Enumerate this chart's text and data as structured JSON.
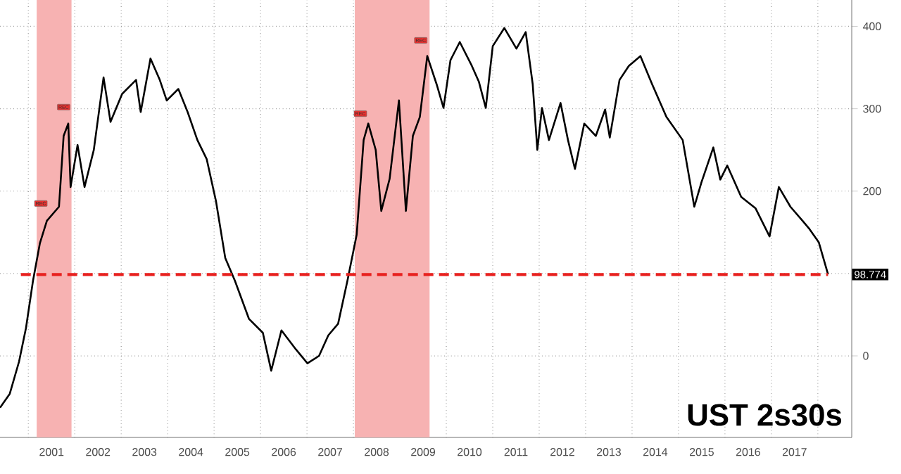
{
  "chart_data": {
    "type": "line",
    "title": "UST 2s30s",
    "xlim": [
      2000.39,
      2018.73
    ],
    "ylim": [
      -99,
      432
    ],
    "xticks": [
      {
        "value": 2001,
        "label": null
      },
      {
        "value": 2001.5,
        "label": "2001"
      },
      {
        "value": 2002,
        "label": null
      },
      {
        "value": 2002.5,
        "label": "2002"
      },
      {
        "value": 2003,
        "label": null
      },
      {
        "value": 2003.5,
        "label": "2003"
      },
      {
        "value": 2004,
        "label": null
      },
      {
        "value": 2004.5,
        "label": "2004"
      },
      {
        "value": 2005,
        "label": null
      },
      {
        "value": 2005.5,
        "label": "2005"
      },
      {
        "value": 2006,
        "label": null
      },
      {
        "value": 2006.5,
        "label": "2006"
      },
      {
        "value": 2007,
        "label": null
      },
      {
        "value": 2007.5,
        "label": "2007"
      },
      {
        "value": 2008,
        "label": null
      },
      {
        "value": 2008.5,
        "label": "2008"
      },
      {
        "value": 2009,
        "label": null
      },
      {
        "value": 2009.5,
        "label": "2009"
      },
      {
        "value": 2010,
        "label": null
      },
      {
        "value": 2010.5,
        "label": "2010"
      },
      {
        "value": 2011,
        "label": null
      },
      {
        "value": 2011.5,
        "label": "2011"
      },
      {
        "value": 2012,
        "label": null
      },
      {
        "value": 2012.5,
        "label": "2012"
      },
      {
        "value": 2013,
        "label": null
      },
      {
        "value": 2013.5,
        "label": "2013"
      },
      {
        "value": 2014,
        "label": null
      },
      {
        "value": 2014.5,
        "label": "2014"
      },
      {
        "value": 2015,
        "label": null
      },
      {
        "value": 2015.5,
        "label": "2015"
      },
      {
        "value": 2016,
        "label": null
      },
      {
        "value": 2016.5,
        "label": "2016"
      },
      {
        "value": 2017,
        "label": null
      },
      {
        "value": 2017.5,
        "label": "2017"
      },
      {
        "value": 2018,
        "label": null
      }
    ],
    "yticks": [
      0,
      {
        "value": 100,
        "label": null
      },
      200,
      300,
      400
    ],
    "grid": true,
    "series": [
      {
        "color": "#000000",
        "x": [
          2000.39,
          2000.6,
          2000.8,
          2000.95,
          2001.1,
          2001.25,
          2001.4,
          2001.66,
          2001.76,
          2001.86,
          2001.91,
          2002.06,
          2002.21,
          2002.41,
          2002.62,
          2002.77,
          2003.02,
          2003.32,
          2003.42,
          2003.63,
          2003.83,
          2003.98,
          2004.23,
          2004.43,
          2004.64,
          2004.84,
          2005.04,
          2005.24,
          2005.45,
          2005.75,
          2006.05,
          2006.23,
          2006.45,
          2006.76,
          2007.01,
          2007.26,
          2007.46,
          2007.67,
          2007.87,
          2008.07,
          2008.22,
          2008.32,
          2008.48,
          2008.6,
          2008.78,
          2008.98,
          2009.13,
          2009.28,
          2009.43,
          2009.59,
          2009.79,
          2009.94,
          2010.09,
          2010.29,
          2010.55,
          2010.7,
          2010.85,
          2011.0,
          2011.25,
          2011.51,
          2011.71,
          2011.86,
          2011.96,
          2012.06,
          2012.21,
          2012.46,
          2012.62,
          2012.77,
          2012.97,
          2013.22,
          2013.42,
          2013.52,
          2013.73,
          2013.93,
          2014.18,
          2014.43,
          2014.74,
          2015.09,
          2015.34,
          2015.49,
          2015.75,
          2015.9,
          2016.05,
          2016.35,
          2016.66,
          2016.96,
          2017.16,
          2017.41,
          2017.67,
          2017.82,
          2018.02,
          2018.22
        ],
        "values": [
          -63,
          -46,
          -7,
          34,
          91,
          137,
          164,
          181,
          267,
          282,
          205,
          256,
          205,
          250,
          338,
          284,
          318,
          335,
          296,
          361,
          335,
          310,
          324,
          296,
          262,
          239,
          188,
          119,
          91,
          45,
          28,
          -18,
          31,
          8,
          -9,
          0,
          25,
          39,
          91,
          147,
          262,
          282,
          250,
          176,
          215,
          310,
          176,
          267,
          290,
          364,
          330,
          301,
          359,
          381,
          352,
          333,
          301,
          376,
          398,
          373,
          393,
          330,
          250,
          301,
          262,
          307,
          262,
          227,
          282,
          267,
          299,
          265,
          335,
          352,
          364,
          330,
          290,
          262,
          181,
          210,
          253,
          214,
          231,
          193,
          179,
          145,
          205,
          181,
          164,
          154,
          138,
          99
        ]
      }
    ],
    "bands": [
      {
        "axis": "x",
        "from": 2001.18,
        "to": 2001.93,
        "color": "#f7b2b2"
      },
      {
        "axis": "x",
        "from": 2008.03,
        "to": 2009.64,
        "color": "#f7b2b2"
      }
    ],
    "ref_lines": [
      {
        "axis": "y",
        "value": 98.774,
        "label": "98.774",
        "color": "#e8201e",
        "line_style": "dashed"
      }
    ],
    "annotations": [
      {
        "text": "REC",
        "x": 2001.27,
        "y": 185
      },
      {
        "text": "REC",
        "x": 2001.76,
        "y": 302
      },
      {
        "text": "REC",
        "x": 2008.15,
        "y": 294
      },
      {
        "text": "REC",
        "x": 2009.45,
        "y": 383
      }
    ]
  }
}
